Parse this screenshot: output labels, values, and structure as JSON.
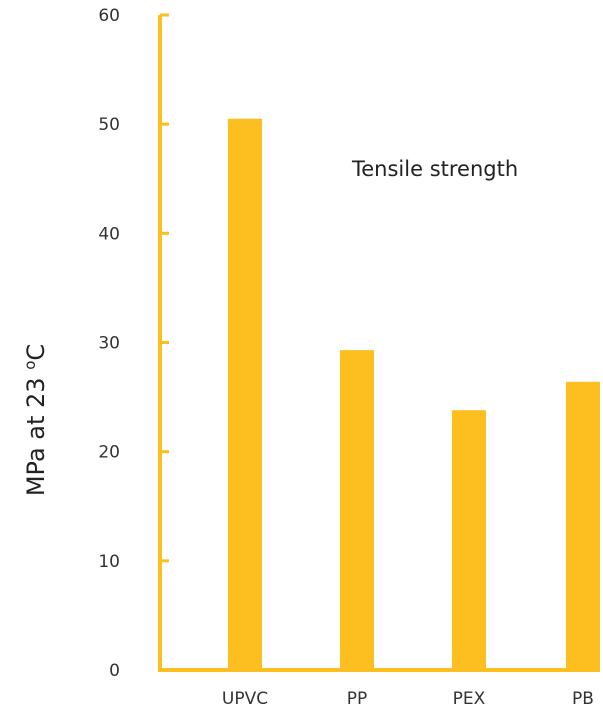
{
  "chart_data": {
    "type": "bar",
    "categories": [
      "UPVC",
      "PP",
      "PEX",
      "PB"
    ],
    "values": [
      50.5,
      29.3,
      23.8,
      26.4
    ],
    "title": "",
    "xlabel": "",
    "ylabel": "MPa at 23 °C",
    "ylim": [
      0,
      60
    ],
    "yticks": [
      0,
      10,
      20,
      30,
      40,
      50,
      60
    ],
    "annotation": "Tensile strength",
    "grid": false,
    "legend": "none",
    "colors": {
      "bar": "#FDBE20",
      "axis": "#FDBE20"
    }
  }
}
